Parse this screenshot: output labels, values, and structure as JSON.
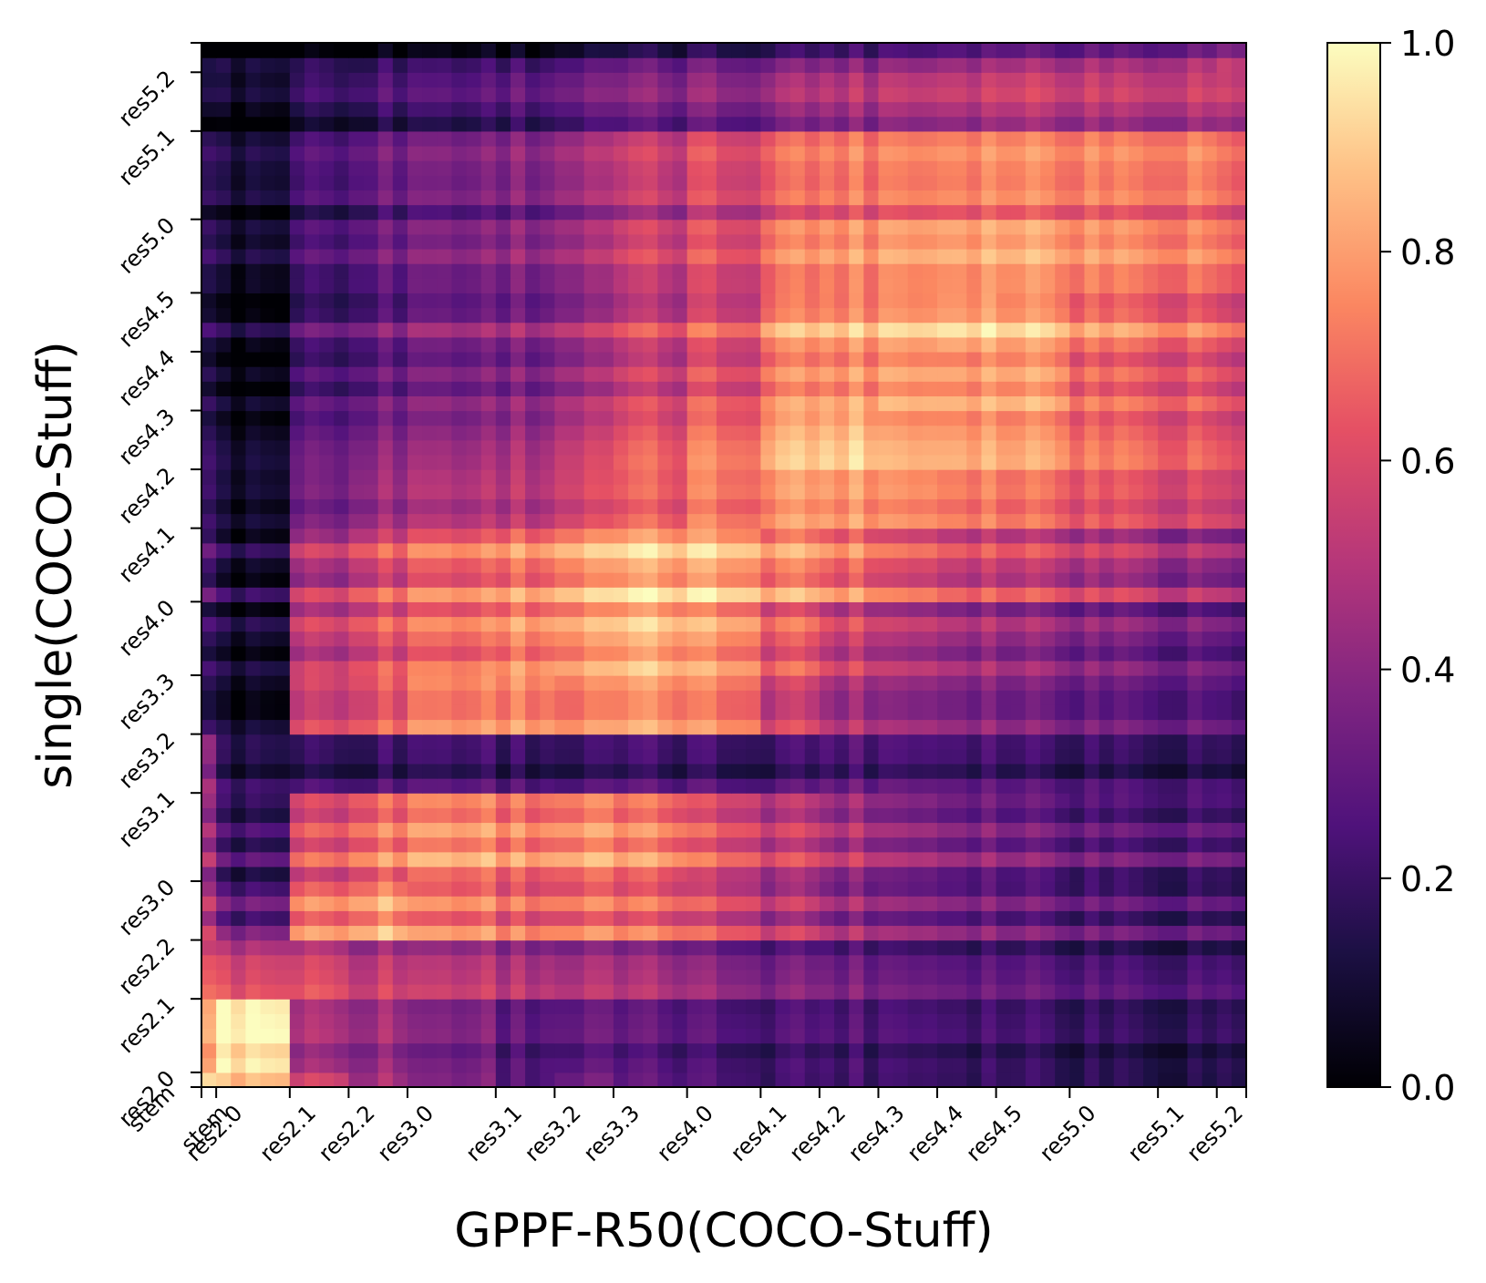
{
  "chart_data": {
    "type": "heatmap",
    "xlabel": "GPPF-R50(COCO-Stuff)",
    "ylabel": "single(COCO-Stuff)",
    "colormap": "magma",
    "colorbar": {
      "range": [
        0.0,
        1.0
      ],
      "ticks": [
        "0.0",
        "0.2",
        "0.4",
        "0.6",
        "0.8",
        "1.0"
      ]
    },
    "grid": false,
    "x_tick_labels": [
      "stem",
      "res2.0",
      "res2.1",
      "res2.2",
      "res3.0",
      "res3.1",
      "res3.2",
      "res3.3",
      "res4.0",
      "res4.1",
      "res4.2",
      "res4.3",
      "res4.4",
      "res4.5",
      "res5.0",
      "res5.1",
      "res5.2"
    ],
    "y_tick_labels": [
      "stem",
      "res2.0",
      "res2.1",
      "res2.2",
      "res3.0",
      "res3.1",
      "res3.2",
      "res3.3",
      "res4.0",
      "res4.1",
      "res4.2",
      "res4.3",
      "res4.4",
      "res4.5",
      "res5.0",
      "res5.1",
      "res5.2"
    ],
    "x_block_boundaries": [
      0,
      1,
      6,
      10,
      14,
      20,
      24,
      28,
      33,
      38,
      42,
      46,
      50,
      54,
      59,
      65,
      69,
      71
    ],
    "y_block_boundaries": [
      0,
      1,
      6,
      10,
      14,
      20,
      24,
      28,
      33,
      38,
      42,
      46,
      50,
      54,
      59,
      65,
      69,
      71
    ],
    "grid_size": 71,
    "block_values": [
      [
        0.95,
        0.85,
        0.55,
        0.45,
        0.35,
        0.25,
        0.3,
        0.25,
        0.22,
        0.2,
        0.2,
        0.2,
        0.18,
        0.18,
        0.15,
        0.12,
        0.12
      ],
      [
        0.8,
        0.92,
        0.4,
        0.38,
        0.3,
        0.22,
        0.22,
        0.2,
        0.18,
        0.18,
        0.18,
        0.18,
        0.16,
        0.15,
        0.12,
        0.1,
        0.1
      ],
      [
        0.65,
        0.55,
        0.55,
        0.5,
        0.48,
        0.45,
        0.42,
        0.4,
        0.35,
        0.32,
        0.3,
        0.28,
        0.26,
        0.25,
        0.22,
        0.2,
        0.18
      ],
      [
        0.55,
        0.3,
        0.72,
        0.8,
        0.72,
        0.68,
        0.68,
        0.65,
        0.58,
        0.5,
        0.42,
        0.38,
        0.35,
        0.32,
        0.28,
        0.25,
        0.22
      ],
      [
        0.5,
        0.22,
        0.62,
        0.72,
        0.78,
        0.75,
        0.76,
        0.72,
        0.62,
        0.55,
        0.48,
        0.42,
        0.38,
        0.35,
        0.3,
        0.28,
        0.25
      ],
      [
        0.45,
        0.15,
        0.18,
        0.2,
        0.22,
        0.2,
        0.18,
        0.2,
        0.2,
        0.22,
        0.25,
        0.25,
        0.24,
        0.22,
        0.2,
        0.18,
        0.15
      ],
      [
        0.25,
        0.12,
        0.62,
        0.7,
        0.8,
        0.82,
        0.78,
        0.82,
        0.78,
        0.62,
        0.52,
        0.48,
        0.45,
        0.42,
        0.38,
        0.35,
        0.3
      ],
      [
        0.25,
        0.12,
        0.55,
        0.65,
        0.72,
        0.78,
        0.8,
        0.85,
        0.8,
        0.68,
        0.58,
        0.52,
        0.48,
        0.45,
        0.4,
        0.35,
        0.3
      ],
      [
        0.3,
        0.12,
        0.5,
        0.62,
        0.7,
        0.75,
        0.8,
        0.85,
        0.85,
        0.78,
        0.72,
        0.65,
        0.6,
        0.58,
        0.52,
        0.45,
        0.4
      ],
      [
        0.25,
        0.1,
        0.35,
        0.45,
        0.5,
        0.52,
        0.58,
        0.65,
        0.72,
        0.8,
        0.8,
        0.78,
        0.75,
        0.72,
        0.65,
        0.6,
        0.55
      ],
      [
        0.22,
        0.08,
        0.3,
        0.38,
        0.42,
        0.45,
        0.52,
        0.62,
        0.7,
        0.85,
        0.88,
        0.82,
        0.82,
        0.8,
        0.7,
        0.65,
        0.58
      ],
      [
        0.22,
        0.08,
        0.28,
        0.35,
        0.4,
        0.42,
        0.48,
        0.58,
        0.65,
        0.8,
        0.82,
        0.85,
        0.85,
        0.85,
        0.72,
        0.68,
        0.6
      ],
      [
        0.2,
        0.08,
        0.25,
        0.32,
        0.38,
        0.4,
        0.45,
        0.55,
        0.62,
        0.8,
        0.82,
        0.85,
        0.88,
        0.85,
        0.75,
        0.7,
        0.62
      ],
      [
        0.2,
        0.08,
        0.22,
        0.3,
        0.35,
        0.38,
        0.42,
        0.52,
        0.58,
        0.72,
        0.75,
        0.78,
        0.8,
        0.8,
        0.75,
        0.72,
        0.65
      ],
      [
        0.18,
        0.08,
        0.2,
        0.28,
        0.32,
        0.35,
        0.4,
        0.48,
        0.55,
        0.65,
        0.68,
        0.7,
        0.72,
        0.72,
        0.7,
        0.7,
        0.62
      ],
      [
        0.12,
        0.05,
        0.15,
        0.2,
        0.22,
        0.25,
        0.28,
        0.32,
        0.35,
        0.42,
        0.45,
        0.48,
        0.5,
        0.52,
        0.5,
        0.5,
        0.48
      ],
      [
        0.1,
        0.05,
        0.1,
        0.12,
        0.14,
        0.15,
        0.18,
        0.22,
        0.25,
        0.3,
        0.32,
        0.35,
        0.38,
        0.4,
        0.4,
        0.42,
        0.45
      ]
    ]
  }
}
